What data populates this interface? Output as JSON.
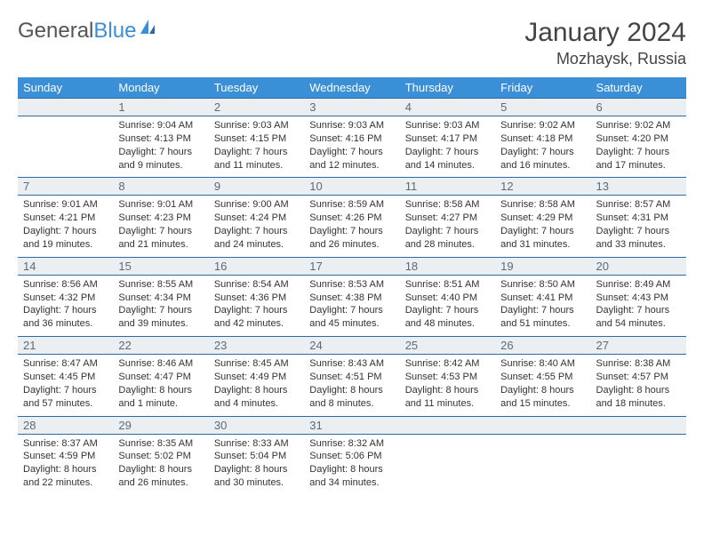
{
  "logo": {
    "text1": "General",
    "text2": "Blue"
  },
  "title": "January 2024",
  "location": "Mozhaysk, Russia",
  "colors": {
    "header_bg": "#3b8fd6",
    "header_text": "#ffffff",
    "daynum_bg": "#eceff1",
    "daynum_text": "#5c6b76",
    "border": "#2b6ba3",
    "body_text": "#333333"
  },
  "weekdays": [
    "Sunday",
    "Monday",
    "Tuesday",
    "Wednesday",
    "Thursday",
    "Friday",
    "Saturday"
  ],
  "weeks": [
    [
      null,
      {
        "n": "1",
        "sr": "Sunrise: 9:04 AM",
        "ss": "Sunset: 4:13 PM",
        "d1": "Daylight: 7 hours",
        "d2": "and 9 minutes."
      },
      {
        "n": "2",
        "sr": "Sunrise: 9:03 AM",
        "ss": "Sunset: 4:15 PM",
        "d1": "Daylight: 7 hours",
        "d2": "and 11 minutes."
      },
      {
        "n": "3",
        "sr": "Sunrise: 9:03 AM",
        "ss": "Sunset: 4:16 PM",
        "d1": "Daylight: 7 hours",
        "d2": "and 12 minutes."
      },
      {
        "n": "4",
        "sr": "Sunrise: 9:03 AM",
        "ss": "Sunset: 4:17 PM",
        "d1": "Daylight: 7 hours",
        "d2": "and 14 minutes."
      },
      {
        "n": "5",
        "sr": "Sunrise: 9:02 AM",
        "ss": "Sunset: 4:18 PM",
        "d1": "Daylight: 7 hours",
        "d2": "and 16 minutes."
      },
      {
        "n": "6",
        "sr": "Sunrise: 9:02 AM",
        "ss": "Sunset: 4:20 PM",
        "d1": "Daylight: 7 hours",
        "d2": "and 17 minutes."
      }
    ],
    [
      {
        "n": "7",
        "sr": "Sunrise: 9:01 AM",
        "ss": "Sunset: 4:21 PM",
        "d1": "Daylight: 7 hours",
        "d2": "and 19 minutes."
      },
      {
        "n": "8",
        "sr": "Sunrise: 9:01 AM",
        "ss": "Sunset: 4:23 PM",
        "d1": "Daylight: 7 hours",
        "d2": "and 21 minutes."
      },
      {
        "n": "9",
        "sr": "Sunrise: 9:00 AM",
        "ss": "Sunset: 4:24 PM",
        "d1": "Daylight: 7 hours",
        "d2": "and 24 minutes."
      },
      {
        "n": "10",
        "sr": "Sunrise: 8:59 AM",
        "ss": "Sunset: 4:26 PM",
        "d1": "Daylight: 7 hours",
        "d2": "and 26 minutes."
      },
      {
        "n": "11",
        "sr": "Sunrise: 8:58 AM",
        "ss": "Sunset: 4:27 PM",
        "d1": "Daylight: 7 hours",
        "d2": "and 28 minutes."
      },
      {
        "n": "12",
        "sr": "Sunrise: 8:58 AM",
        "ss": "Sunset: 4:29 PM",
        "d1": "Daylight: 7 hours",
        "d2": "and 31 minutes."
      },
      {
        "n": "13",
        "sr": "Sunrise: 8:57 AM",
        "ss": "Sunset: 4:31 PM",
        "d1": "Daylight: 7 hours",
        "d2": "and 33 minutes."
      }
    ],
    [
      {
        "n": "14",
        "sr": "Sunrise: 8:56 AM",
        "ss": "Sunset: 4:32 PM",
        "d1": "Daylight: 7 hours",
        "d2": "and 36 minutes."
      },
      {
        "n": "15",
        "sr": "Sunrise: 8:55 AM",
        "ss": "Sunset: 4:34 PM",
        "d1": "Daylight: 7 hours",
        "d2": "and 39 minutes."
      },
      {
        "n": "16",
        "sr": "Sunrise: 8:54 AM",
        "ss": "Sunset: 4:36 PM",
        "d1": "Daylight: 7 hours",
        "d2": "and 42 minutes."
      },
      {
        "n": "17",
        "sr": "Sunrise: 8:53 AM",
        "ss": "Sunset: 4:38 PM",
        "d1": "Daylight: 7 hours",
        "d2": "and 45 minutes."
      },
      {
        "n": "18",
        "sr": "Sunrise: 8:51 AM",
        "ss": "Sunset: 4:40 PM",
        "d1": "Daylight: 7 hours",
        "d2": "and 48 minutes."
      },
      {
        "n": "19",
        "sr": "Sunrise: 8:50 AM",
        "ss": "Sunset: 4:41 PM",
        "d1": "Daylight: 7 hours",
        "d2": "and 51 minutes."
      },
      {
        "n": "20",
        "sr": "Sunrise: 8:49 AM",
        "ss": "Sunset: 4:43 PM",
        "d1": "Daylight: 7 hours",
        "d2": "and 54 minutes."
      }
    ],
    [
      {
        "n": "21",
        "sr": "Sunrise: 8:47 AM",
        "ss": "Sunset: 4:45 PM",
        "d1": "Daylight: 7 hours",
        "d2": "and 57 minutes."
      },
      {
        "n": "22",
        "sr": "Sunrise: 8:46 AM",
        "ss": "Sunset: 4:47 PM",
        "d1": "Daylight: 8 hours",
        "d2": "and 1 minute."
      },
      {
        "n": "23",
        "sr": "Sunrise: 8:45 AM",
        "ss": "Sunset: 4:49 PM",
        "d1": "Daylight: 8 hours",
        "d2": "and 4 minutes."
      },
      {
        "n": "24",
        "sr": "Sunrise: 8:43 AM",
        "ss": "Sunset: 4:51 PM",
        "d1": "Daylight: 8 hours",
        "d2": "and 8 minutes."
      },
      {
        "n": "25",
        "sr": "Sunrise: 8:42 AM",
        "ss": "Sunset: 4:53 PM",
        "d1": "Daylight: 8 hours",
        "d2": "and 11 minutes."
      },
      {
        "n": "26",
        "sr": "Sunrise: 8:40 AM",
        "ss": "Sunset: 4:55 PM",
        "d1": "Daylight: 8 hours",
        "d2": "and 15 minutes."
      },
      {
        "n": "27",
        "sr": "Sunrise: 8:38 AM",
        "ss": "Sunset: 4:57 PM",
        "d1": "Daylight: 8 hours",
        "d2": "and 18 minutes."
      }
    ],
    [
      {
        "n": "28",
        "sr": "Sunrise: 8:37 AM",
        "ss": "Sunset: 4:59 PM",
        "d1": "Daylight: 8 hours",
        "d2": "and 22 minutes."
      },
      {
        "n": "29",
        "sr": "Sunrise: 8:35 AM",
        "ss": "Sunset: 5:02 PM",
        "d1": "Daylight: 8 hours",
        "d2": "and 26 minutes."
      },
      {
        "n": "30",
        "sr": "Sunrise: 8:33 AM",
        "ss": "Sunset: 5:04 PM",
        "d1": "Daylight: 8 hours",
        "d2": "and 30 minutes."
      },
      {
        "n": "31",
        "sr": "Sunrise: 8:32 AM",
        "ss": "Sunset: 5:06 PM",
        "d1": "Daylight: 8 hours",
        "d2": "and 34 minutes."
      },
      null,
      null,
      null
    ]
  ]
}
